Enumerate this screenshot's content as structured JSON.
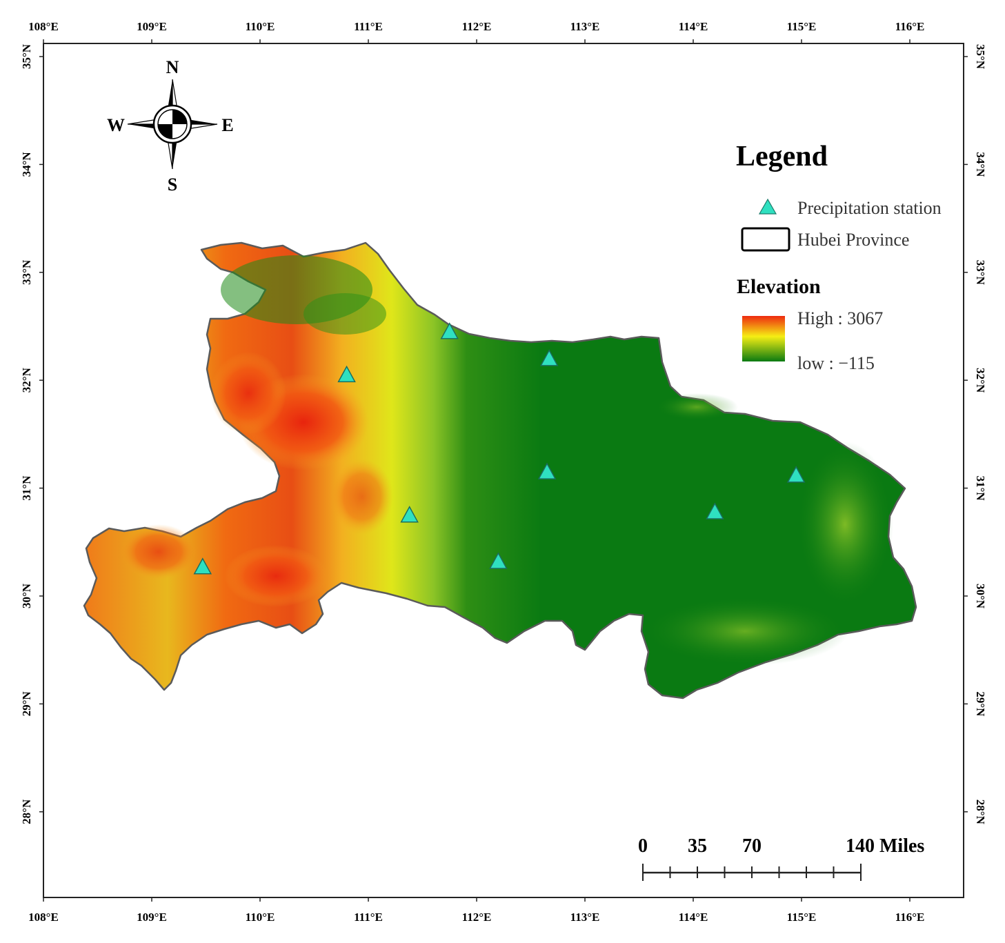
{
  "map": {
    "longitude_labels": [
      "108°E",
      "109°E",
      "110°E",
      "111°E",
      "112°E",
      "113°E",
      "114°E",
      "115°E",
      "116°E"
    ],
    "latitude_labels": [
      "35°N",
      "34°N",
      "33°N",
      "32°N",
      "31°N",
      "30°N",
      "29°N",
      "28°N"
    ]
  },
  "compass": {
    "north": "N",
    "south": "S",
    "east": "E",
    "west": "W"
  },
  "legend": {
    "title": "Legend",
    "station_label": "Precipitation station",
    "boundary_label": "Hubei Province",
    "elevation_title": "Elevation",
    "high_label": "High : 3067",
    "low_label": "low : −115"
  },
  "scalebar": {
    "labels": [
      "0",
      "35",
      "70",
      "140 Miles"
    ],
    "ticks": 9
  },
  "colors": {
    "station": "#2fe0c0",
    "elevation_high": "#ee2a10",
    "elevation_mid": "#f5ee14",
    "elevation_low": "#0a7a12"
  },
  "stations": [
    {
      "lon": 110.8,
      "lat": 32.05
    },
    {
      "lon": 111.75,
      "lat": 32.45
    },
    {
      "lon": 112.67,
      "lat": 32.2
    },
    {
      "lon": 112.65,
      "lat": 31.15
    },
    {
      "lon": 111.38,
      "lat": 30.75
    },
    {
      "lon": 112.2,
      "lat": 30.32
    },
    {
      "lon": 114.2,
      "lat": 30.78
    },
    {
      "lon": 114.95,
      "lat": 31.12
    },
    {
      "lon": 109.47,
      "lat": 30.27
    }
  ]
}
